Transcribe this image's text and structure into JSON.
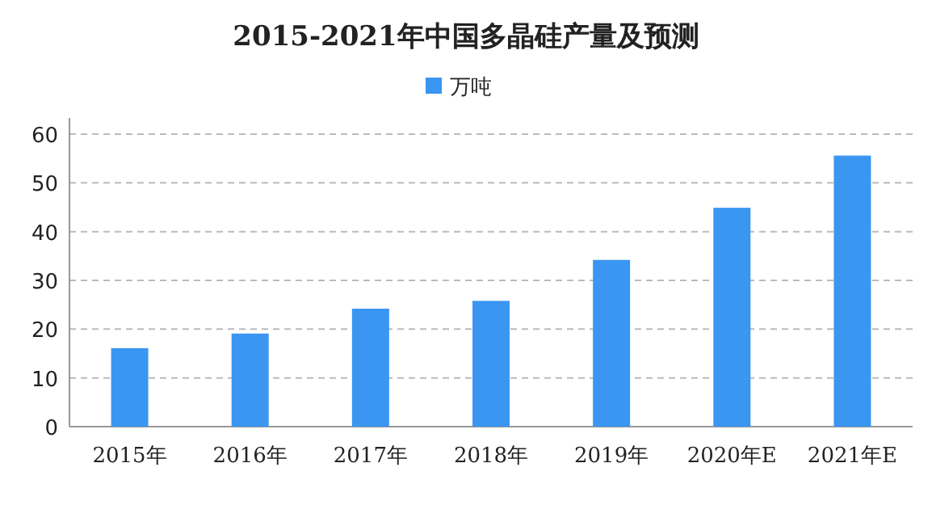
{
  "chart_data": {
    "type": "bar",
    "title": "2015-2021年中国多晶硅产量及预测",
    "categories": [
      "2015年",
      "2016年",
      "2017年",
      "2018年",
      "2019年",
      "2020年E",
      "2021年E"
    ],
    "series": [
      {
        "name": "万吨",
        "color": "#3a96f0",
        "values": [
          16.1,
          19.1,
          24.2,
          25.8,
          34.2,
          44.9,
          55.6
        ]
      }
    ],
    "ylim": [
      0,
      60
    ],
    "yticks": [
      0,
      10,
      20,
      30,
      40,
      50,
      60
    ],
    "grid": "y",
    "legend": "top"
  }
}
